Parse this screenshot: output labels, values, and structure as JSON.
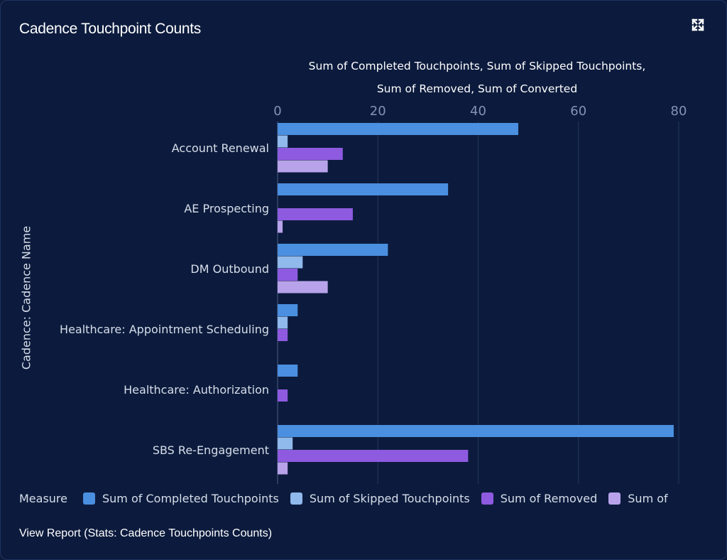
{
  "card": {
    "title": "Cadence  Touchpoint Counts",
    "expand_icon": "expand-arrows-icon",
    "footer_link": "View Report (Stats: Cadence Touchpoints Counts)"
  },
  "legend": {
    "label": "Measure",
    "items": [
      {
        "text": "Sum of Completed Touchpoints",
        "color": "#4a8fe0"
      },
      {
        "text": "Sum of Skipped Touchpoints",
        "color": "#90b9ec"
      },
      {
        "text": "Sum of Removed",
        "color": "#8e5ae0"
      },
      {
        "text": "Sum of",
        "color": "#b8a3ea"
      }
    ]
  },
  "chart_data": {
    "type": "bar",
    "orientation": "horizontal",
    "title": "Cadence  Touchpoint Counts",
    "xlabel_lines": [
      "Sum of Completed Touchpoints, Sum of Skipped Touchpoints,",
      "Sum of Removed, Sum of Converted"
    ],
    "ylabel": "Cadence: Cadence Name",
    "xlim": [
      0,
      80
    ],
    "xticks": [
      0,
      20,
      40,
      60,
      80
    ],
    "grid": true,
    "legend_position": "bottom",
    "categories": [
      "Account Renewal",
      "AE Prospecting",
      "DM Outbound",
      "Healthcare: Appointment Scheduling",
      "Healthcare: Authorization",
      "SBS Re-Engagement"
    ],
    "series": [
      {
        "name": "Sum of Completed Touchpoints",
        "color": "#4a8fe0",
        "values": [
          48,
          34,
          22,
          4,
          4,
          79
        ]
      },
      {
        "name": "Sum of Skipped Touchpoints",
        "color": "#90b9ec",
        "values": [
          2,
          0,
          5,
          2,
          0,
          3
        ]
      },
      {
        "name": "Sum of Removed",
        "color": "#8e5ae0",
        "values": [
          13,
          15,
          4,
          2,
          2,
          38
        ]
      },
      {
        "name": "Sum of Converted",
        "color": "#b8a3ea",
        "values": [
          10,
          1,
          10,
          0,
          0,
          2
        ]
      }
    ]
  }
}
